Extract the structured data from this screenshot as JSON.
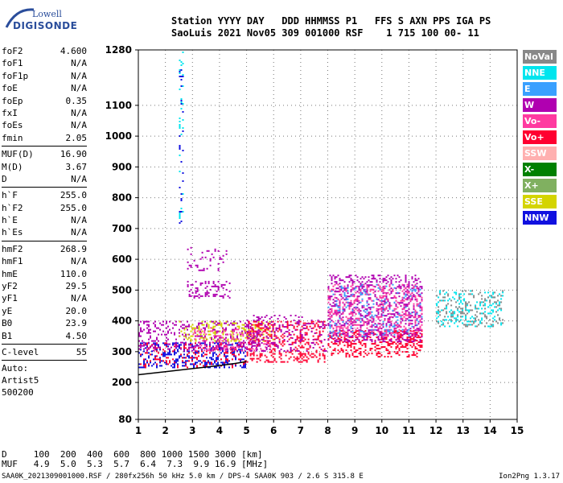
{
  "logo": {
    "line1": "Lowell",
    "line2": "DIGISONDE"
  },
  "header": {
    "labels": "Station YYYY DAY   DDD HHMMSS P1   FFS S AXN PPS IGA PS",
    "values": "SaoLuis 2021 Nov05 309 001000 RSF    1 715 100 00- 11"
  },
  "params": {
    "group1": [
      [
        "foF2",
        "4.600"
      ],
      [
        "foF1",
        "N/A"
      ],
      [
        "foF1p",
        "N/A"
      ],
      [
        "foE",
        "N/A"
      ],
      [
        "foEp",
        "0.35"
      ],
      [
        "fxI",
        "N/A"
      ],
      [
        "foEs",
        "N/A"
      ],
      [
        "fmin",
        "2.05"
      ]
    ],
    "group2": [
      [
        "MUF(D)",
        "16.90"
      ],
      [
        "M(D)",
        "3.67"
      ],
      [
        "D",
        "N/A"
      ]
    ],
    "group3": [
      [
        "h`F",
        "255.0"
      ],
      [
        "h`F2",
        "255.0"
      ],
      [
        "h`E",
        "N/A"
      ],
      [
        "h`Es",
        "N/A"
      ]
    ],
    "group4": [
      [
        "hmF2",
        "268.9"
      ],
      [
        "hmF1",
        "N/A"
      ],
      [
        "hmE",
        "110.0"
      ],
      [
        "yF2",
        "29.5"
      ],
      [
        "yF1",
        "N/A"
      ],
      [
        "yE",
        "20.0"
      ],
      [
        "B0",
        "23.9"
      ],
      [
        "B1",
        "4.50"
      ]
    ],
    "group5": [
      [
        "C-level",
        "55"
      ]
    ],
    "auto": [
      "Auto:",
      "Artist5",
      "500200"
    ]
  },
  "legend": [
    {
      "label": "NoVal",
      "color": "#888888",
      "text": "#ffffff"
    },
    {
      "label": "NNE",
      "color": "#00e5ee",
      "text": "#ffffff"
    },
    {
      "label": "E",
      "color": "#3aa0ff",
      "text": "#ffffff"
    },
    {
      "label": "W",
      "color": "#b000b0",
      "text": "#ffffff"
    },
    {
      "label": "Vo-",
      "color": "#ff3aa0",
      "text": "#ffffff"
    },
    {
      "label": "Vo+",
      "color": "#ff0030",
      "text": "#ffffff"
    },
    {
      "label": "SSW",
      "color": "#ffb0b0",
      "text": "#ffffff"
    },
    {
      "label": "X-",
      "color": "#008000",
      "text": "#ffffff"
    },
    {
      "label": "X+",
      "color": "#80b060",
      "text": "#ffffff"
    },
    {
      "label": "SSE",
      "color": "#d4d400",
      "text": "#ffffff"
    },
    {
      "label": "NNW",
      "color": "#1010e0",
      "text": "#ffffff"
    }
  ],
  "d_table": {
    "d_row": "D     100  200  400  600  800 1000 1500 3000 [km]",
    "muf_row": "MUF   4.9  5.0  5.3  5.7  6.4  7.3  9.9 16.9 [MHz]"
  },
  "footer": "SAA0K_2021309001000.RSF / 280fx256h 50 kHz 5.0 km / DPS-4 SAA0K 903 / 2.6 S 315.8 E",
  "version": "Ion2Png 1.3.17",
  "chart_data": {
    "type": "scatter",
    "xlim": [
      1,
      15
    ],
    "ylim": [
      80,
      1280
    ],
    "x_ticks": [
      1,
      2,
      3,
      4,
      5,
      6,
      7,
      8,
      9,
      10,
      11,
      12,
      13,
      14,
      15
    ],
    "y_ticks": [
      80,
      200,
      300,
      400,
      500,
      600,
      700,
      800,
      900,
      1000,
      1100,
      1280
    ],
    "grid": true,
    "legend_placement": "right",
    "clusters": [
      {
        "x": [
          1.0,
          5.0
        ],
        "y": [
          245,
          330
        ],
        "color": "#1010e0",
        "density": 0.55
      },
      {
        "x": [
          1.0,
          5.0
        ],
        "y": [
          245,
          330
        ],
        "color": "#ff0030",
        "density": 0.25
      },
      {
        "x": [
          1.0,
          5.5
        ],
        "y": [
          300,
          400
        ],
        "color": "#b000b0",
        "density": 0.45
      },
      {
        "x": [
          2.5,
          6.0
        ],
        "y": [
          330,
          400
        ],
        "color": "#d4d400",
        "density": 0.35
      },
      {
        "x": [
          3.0,
          6.0
        ],
        "y": [
          300,
          380
        ],
        "color": "#ff3aa0",
        "density": 0.3
      },
      {
        "x": [
          5.0,
          8.0
        ],
        "y": [
          265,
          400
        ],
        "color": "#ff0030",
        "density": 0.45
      },
      {
        "x": [
          5.0,
          8.0
        ],
        "y": [
          300,
          420
        ],
        "color": "#b000b0",
        "density": 0.3
      },
      {
        "x": [
          8.0,
          11.5
        ],
        "y": [
          280,
          370
        ],
        "color": "#ff0030",
        "density": 0.6
      },
      {
        "x": [
          8.0,
          11.5
        ],
        "y": [
          330,
          550
        ],
        "color": "#b000b0",
        "density": 0.5
      },
      {
        "x": [
          8.0,
          11.5
        ],
        "y": [
          350,
          520
        ],
        "color": "#ff3aa0",
        "density": 0.35
      },
      {
        "x": [
          8.0,
          11.5
        ],
        "y": [
          350,
          520
        ],
        "color": "#3aa0ff",
        "density": 0.15
      },
      {
        "x": [
          2.8,
          4.4
        ],
        "y": [
          470,
          530
        ],
        "color": "#b000b0",
        "density": 0.45
      },
      {
        "x": [
          2.8,
          4.4
        ],
        "y": [
          560,
          640
        ],
        "color": "#b000b0",
        "density": 0.25
      },
      {
        "x": [
          12.0,
          14.5
        ],
        "y": [
          380,
          500
        ],
        "color": "#00e5ee",
        "density": 0.25
      },
      {
        "x": [
          12.0,
          14.5
        ],
        "y": [
          380,
          500
        ],
        "color": "#888888",
        "density": 0.25
      },
      {
        "x": [
          2.5,
          2.7
        ],
        "y": [
          700,
          1280
        ],
        "color": "#00e5ee",
        "density": 0.25
      },
      {
        "x": [
          2.5,
          2.7
        ],
        "y": [
          700,
          1280
        ],
        "color": "#1010e0",
        "density": 0.2
      }
    ],
    "trace": {
      "x": [
        1.0,
        2.0,
        3.0,
        4.0,
        4.6,
        5.0
      ],
      "y": [
        225,
        235,
        245,
        255,
        262,
        268
      ],
      "color": "#000000"
    }
  }
}
